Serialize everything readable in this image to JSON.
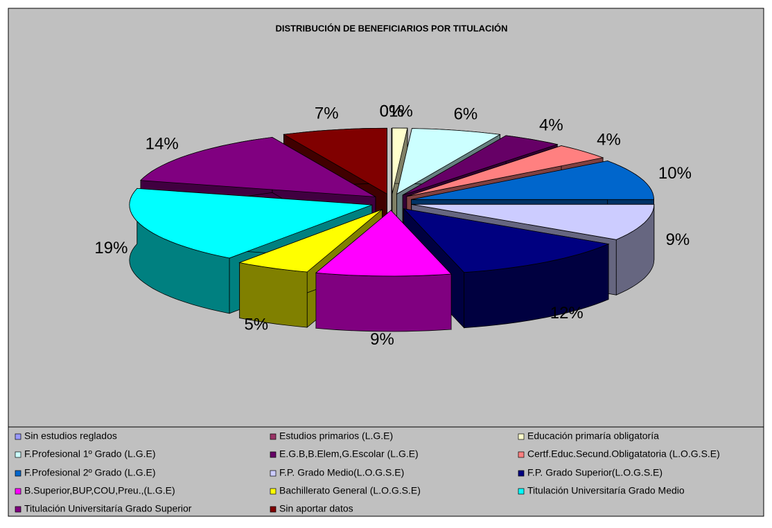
{
  "chart_data": {
    "type": "pie",
    "title": "DISTRIBUCIÓN DE BENEFICIARIOS POR TITULACIÓN",
    "categories": [
      "Sin estudios reglados",
      "Estudios primarios (L.G.E)",
      "Educación primaría obligatoría",
      "F.Profesional 1º Grado (L.G.E)",
      "E.G.B,B.Elem,G.Escolar (L.G.E)",
      "Certf.Educ.Secund.Obligatatoria (L.O.G.S.E)",
      "F.Profesional 2º Grado (L.G.E)",
      "F.P. Grado Medio(L.O.G.S.E)",
      "F.P. Grado Superior(L.O.G.S.E)",
      "B.Superior,BUP,COU,Preu.,(L.G.E)",
      "Bachillerato General (L.O.G.S.E)",
      "Titulación Universitaría Grado Medio",
      "Titulación Universitaría Grado Superior",
      "Sin aportar datos"
    ],
    "values": [
      0,
      0,
      1,
      6,
      4,
      4,
      10,
      9,
      12,
      9,
      5,
      19,
      14,
      7
    ],
    "value_labels": [
      "0%",
      "0%",
      "1%",
      "6%",
      "4%",
      "4%",
      "10%",
      "9%",
      "12%",
      "9%",
      "5%",
      "19%",
      "14%",
      "7%"
    ],
    "colors": [
      "#9999ff",
      "#993366",
      "#ffffcc",
      "#ccffff",
      "#660066",
      "#ff8080",
      "#0066cc",
      "#ccccff",
      "#000080",
      "#ff00ff",
      "#ffff00",
      "#00ffff",
      "#800080",
      "#800000"
    ]
  }
}
